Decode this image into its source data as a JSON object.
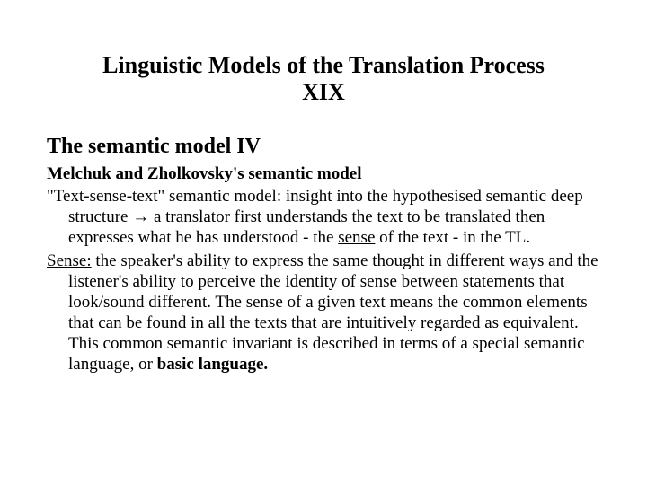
{
  "colors": {
    "background": "#ffffff",
    "text": "#000000"
  },
  "typography": {
    "family": "Times New Roman",
    "title_fontsize": 26,
    "subheading_fontsize": 24,
    "subheading2_fontsize": 19,
    "body_fontsize": 19,
    "line_height": 1.22
  },
  "title": "Linguistic Models of the Translation Process XIX",
  "subheading": "The semantic model IV",
  "subheading2": "Melchuk and Zholkovsky's semantic model",
  "para1": {
    "lead": " \"Text-sense-text\" semantic model: insight into the hypothesised semantic deep structure → a translator first understands the text to be translated then expresses what he has understood - the ",
    "underlined": "sense",
    "tail": " of the text - in the TL."
  },
  "para2": {
    "label": "Sense:",
    "body_a": " the speaker's ability to express the same thought in different ways and the listener's ability to perceive the identity of sense between statements that look/sound different. The sense of a given text means the common elements that can be found in all the texts that are intuitively regarded as equivalent. This common semantic invariant is described in terms of a special semantic language, or ",
    "bold": "basic language.",
    "body_b": ""
  }
}
